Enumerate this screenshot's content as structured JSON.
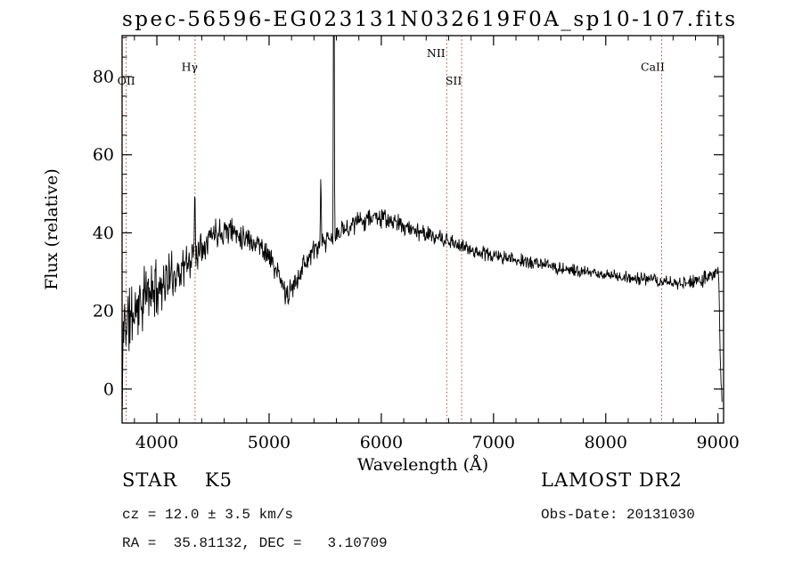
{
  "chart_data": {
    "type": "line",
    "title": "spec-56596-EG023131N032619F0A_sp10-107.fits",
    "xlabel": "Wavelength (Å)",
    "ylabel": "Flux (relative)",
    "xlim": [
      3690,
      9050
    ],
    "ylim": [
      -8.7,
      90.5
    ],
    "xticks": [
      4000,
      5000,
      6000,
      7000,
      8000,
      9000
    ],
    "yticks": [
      0,
      20,
      40,
      60,
      80
    ],
    "x_minor_step": 200,
    "y_minor_step": 5,
    "grid": false,
    "legend": "none",
    "line_color": "#000000",
    "spectral_line_color": "#bb4433",
    "spectral_lines": [
      {
        "label": "OII",
        "wavelength": 3727,
        "label_flux": 78,
        "label_dx": 0
      },
      {
        "label": "Hγ",
        "wavelength": 4340,
        "label_flux": 81.5,
        "label_dx": -6
      },
      {
        "label": "NII",
        "wavelength": 6583,
        "label_flux": 85,
        "label_dx": -12
      },
      {
        "label": "SII",
        "wavelength": 6716,
        "label_flux": 78,
        "label_dx": -9
      },
      {
        "label": "CaII",
        "wavelength": 8498,
        "label_flux": 81.5,
        "label_dx": -10
      }
    ],
    "series": [
      {
        "name": "spectrum",
        "wl_start": 3692,
        "wl_end": 9036,
        "sample_step": 4,
        "noise_seed": 11,
        "spike_halfwidth_angstrom": 8,
        "emission_spikes": [
          [
            4338,
            54
          ],
          [
            5461,
            56
          ],
          [
            5577,
            140
          ]
        ],
        "continuum_points": [
          [
            3692,
            -5
          ],
          [
            3696,
            6
          ],
          [
            3702,
            16
          ],
          [
            3710,
            18
          ],
          [
            3740,
            17
          ],
          [
            3780,
            19
          ],
          [
            3820,
            21
          ],
          [
            3860,
            22
          ],
          [
            3900,
            24
          ],
          [
            3950,
            25
          ],
          [
            4000,
            26
          ],
          [
            4050,
            27
          ],
          [
            4100,
            28.5
          ],
          [
            4150,
            29
          ],
          [
            4200,
            30.5
          ],
          [
            4250,
            31.5
          ],
          [
            4300,
            33
          ],
          [
            4350,
            35
          ],
          [
            4400,
            37
          ],
          [
            4450,
            38.5
          ],
          [
            4500,
            40
          ],
          [
            4560,
            40.5
          ],
          [
            4620,
            41
          ],
          [
            4680,
            40.5
          ],
          [
            4740,
            39.5
          ],
          [
            4800,
            39
          ],
          [
            4860,
            37.5
          ],
          [
            4900,
            37.5
          ],
          [
            4950,
            36
          ],
          [
            5000,
            34
          ],
          [
            5050,
            31
          ],
          [
            5100,
            28
          ],
          [
            5140,
            25
          ],
          [
            5170,
            23.5
          ],
          [
            5200,
            25.5
          ],
          [
            5250,
            28.5
          ],
          [
            5300,
            31.5
          ],
          [
            5350,
            33.5
          ],
          [
            5400,
            35.5
          ],
          [
            5450,
            36.5
          ],
          [
            5500,
            37.5
          ],
          [
            5550,
            38.5
          ],
          [
            5600,
            39.5
          ],
          [
            5650,
            40.5
          ],
          [
            5700,
            41.5
          ],
          [
            5760,
            42.5
          ],
          [
            5820,
            43
          ],
          [
            5880,
            43.8
          ],
          [
            5940,
            44.2
          ],
          [
            6000,
            43.8
          ],
          [
            6060,
            43.2
          ],
          [
            6120,
            42.6
          ],
          [
            6180,
            42
          ],
          [
            6240,
            41.3
          ],
          [
            6300,
            40.7
          ],
          [
            6360,
            40.1
          ],
          [
            6420,
            39.5
          ],
          [
            6480,
            38.9
          ],
          [
            6540,
            38.3
          ],
          [
            6600,
            37.7
          ],
          [
            6660,
            37.1
          ],
          [
            6720,
            36.5
          ],
          [
            6780,
            35.9
          ],
          [
            6840,
            35.3
          ],
          [
            6900,
            34.8
          ],
          [
            6960,
            34.4
          ],
          [
            7020,
            34
          ],
          [
            7100,
            33.6
          ],
          [
            7180,
            33.2
          ],
          [
            7260,
            32.8
          ],
          [
            7340,
            32.4
          ],
          [
            7420,
            32
          ],
          [
            7500,
            31.5
          ],
          [
            7580,
            31
          ],
          [
            7660,
            30.6
          ],
          [
            7740,
            30.2
          ],
          [
            7820,
            29.9
          ],
          [
            7900,
            29.6
          ],
          [
            7980,
            29.4
          ],
          [
            8060,
            29.1
          ],
          [
            8140,
            28.8
          ],
          [
            8220,
            28.5
          ],
          [
            8300,
            28.2
          ],
          [
            8380,
            28
          ],
          [
            8460,
            27.7
          ],
          [
            8540,
            27.4
          ],
          [
            8620,
            27.1
          ],
          [
            8700,
            27
          ],
          [
            8780,
            27.3
          ],
          [
            8860,
            28
          ],
          [
            8920,
            28.8
          ],
          [
            8970,
            29.8
          ],
          [
            9000,
            30.5
          ],
          [
            9008,
            27
          ],
          [
            9016,
            15
          ],
          [
            9024,
            4
          ],
          [
            9034,
            -3
          ]
        ],
        "noise_amplitude": [
          [
            3692,
            9
          ],
          [
            3800,
            8
          ],
          [
            3900,
            7
          ],
          [
            4000,
            6
          ],
          [
            4100,
            5.5
          ],
          [
            4200,
            5
          ],
          [
            4300,
            4.5
          ],
          [
            4400,
            4
          ],
          [
            4500,
            3.5
          ],
          [
            4700,
            3
          ],
          [
            5000,
            2.8
          ],
          [
            5300,
            2.6
          ],
          [
            5600,
            2.4
          ],
          [
            6000,
            2.2
          ],
          [
            6400,
            1.9
          ],
          [
            6800,
            1.7
          ],
          [
            7200,
            1.5
          ],
          [
            7600,
            1.4
          ],
          [
            8000,
            1.4
          ],
          [
            8400,
            1.5
          ],
          [
            8700,
            1.7
          ],
          [
            8900,
            2
          ],
          [
            9000,
            2.3
          ],
          [
            9034,
            2
          ]
        ]
      }
    ]
  },
  "annotations": {
    "star_class": "STAR    K5",
    "survey": "LAMOST DR2",
    "cz": "cz = 12.0 ± 3.5 km/s",
    "obs_date": "Obs-Date: 20131030",
    "coords": "RA =  35.81132, DEC =   3.10709"
  }
}
